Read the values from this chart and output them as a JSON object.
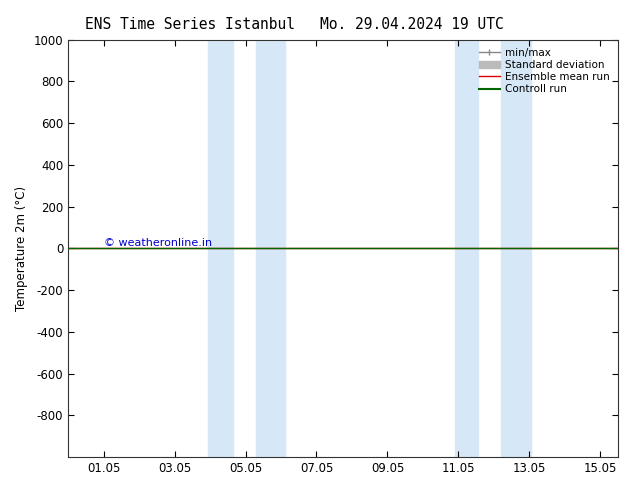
{
  "title_left": "ENS Time Series Istanbul",
  "title_right": "Mo. 29.04.2024 19 UTC",
  "ylabel": "Temperature 2m (°C)",
  "ylim_top": -1000,
  "ylim_bottom": 1000,
  "yticks": [
    -800,
    -600,
    -400,
    -200,
    0,
    200,
    400,
    600,
    800,
    1000
  ],
  "xtick_labels": [
    "01.05",
    "03.05",
    "05.05",
    "07.05",
    "09.05",
    "11.05",
    "13.05",
    "15.05"
  ],
  "xtick_positions": [
    1,
    3,
    5,
    7,
    9,
    11,
    13,
    15
  ],
  "xlim": [
    0.0,
    15.5
  ],
  "shaded_bands": [
    {
      "xmin": 3.95,
      "xmax": 4.65
    },
    {
      "xmin": 5.3,
      "xmax": 6.1
    },
    {
      "xmin": 10.9,
      "xmax": 11.55
    },
    {
      "xmin": 12.2,
      "xmax": 13.05
    }
  ],
  "shade_color": "#d6e8f7",
  "red_line_color": "#dd0000",
  "green_line_color": "#006600",
  "copyright_text": "© weatheronline.in",
  "copyright_color": "#0000cc",
  "legend_items": [
    {
      "label": "min/max"
    },
    {
      "label": "Standard deviation"
    },
    {
      "label": "Ensemble mean run"
    },
    {
      "label": "Controll run"
    }
  ],
  "legend_line_colors": [
    "#888888",
    "#bbbbbb",
    "#dd0000",
    "#006600"
  ],
  "bg_color": "#ffffff",
  "font_size_title": 10.5,
  "font_size_axis": 8.5,
  "font_size_legend": 7.5,
  "font_size_copyright": 8
}
